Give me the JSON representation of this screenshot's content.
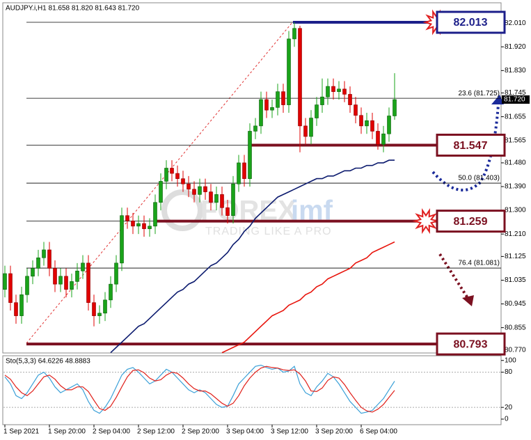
{
  "chart_data": [
    {
      "type": "candlestick",
      "title": "AUDJPY.i,H1  81.658 81.820 81.643 81.720",
      "categories": [
        "1 Sep 2021",
        null,
        null,
        null,
        null,
        null,
        null,
        null,
        "1 Sep 20:00",
        null,
        null,
        null,
        null,
        null,
        null,
        null,
        "2 Sep 04:00",
        null,
        null,
        null,
        null,
        null,
        null,
        null,
        "2 Sep 12:00",
        null,
        null,
        null,
        null,
        null,
        null,
        null,
        "2 Sep 20:00",
        null,
        null,
        null,
        null,
        null,
        null,
        null,
        "3 Sep 04:00",
        null,
        null,
        null,
        null,
        null,
        null,
        null,
        "3 Sep 12:00",
        null,
        null,
        null,
        null,
        null,
        null,
        null,
        "3 Sep 20:00",
        null,
        null,
        null,
        null,
        null,
        null,
        null,
        "6 Sep 04:00",
        null,
        null,
        null,
        null,
        null,
        null
      ],
      "open": [
        81.0,
        81.06,
        80.95,
        80.9,
        80.98,
        81.05,
        81.08,
        81.12,
        81.15,
        81.08,
        81.02,
        81.05,
        81.0,
        81.03,
        81.07,
        81.1,
        80.95,
        80.9,
        80.91,
        80.96,
        81.02,
        81.1,
        81.28,
        81.26,
        81.24,
        81.25,
        81.23,
        81.24,
        81.33,
        81.41,
        81.46,
        81.44,
        81.42,
        81.4,
        81.38,
        81.36,
        81.39,
        81.37,
        81.33,
        81.36,
        81.31,
        81.28,
        81.4,
        81.48,
        81.42,
        81.6,
        81.62,
        81.72,
        81.68,
        81.69,
        81.75,
        81.7,
        81.95,
        81.99,
        81.62,
        81.58,
        81.65,
        81.7,
        81.73,
        81.77,
        81.75,
        81.76,
        81.74,
        81.7,
        81.66,
        81.62,
        81.64,
        81.6,
        81.55,
        81.59,
        81.658
      ],
      "high": [
        81.09,
        81.09,
        80.98,
        81.01,
        81.08,
        81.11,
        81.15,
        81.18,
        81.18,
        81.11,
        81.08,
        81.08,
        81.06,
        81.1,
        81.13,
        81.13,
        80.98,
        80.94,
        80.99,
        81.05,
        81.13,
        81.31,
        81.31,
        81.29,
        81.28,
        81.28,
        81.27,
        81.36,
        81.44,
        81.49,
        81.49,
        81.47,
        81.45,
        81.43,
        81.41,
        81.42,
        81.42,
        81.4,
        81.39,
        81.39,
        81.34,
        81.43,
        81.51,
        81.51,
        81.63,
        81.65,
        81.75,
        81.75,
        81.72,
        81.78,
        81.78,
        81.98,
        82.013,
        82.0,
        81.65,
        81.68,
        81.73,
        81.8,
        81.8,
        81.8,
        81.79,
        81.79,
        81.77,
        81.73,
        81.69,
        81.67,
        81.67,
        81.63,
        81.62,
        81.69,
        81.82
      ],
      "low": [
        80.97,
        80.92,
        80.87,
        80.87,
        80.95,
        81.02,
        81.05,
        81.09,
        81.05,
        80.99,
        80.99,
        80.97,
        80.97,
        81.0,
        81.04,
        80.92,
        80.86,
        80.87,
        80.88,
        80.93,
        80.99,
        81.07,
        81.23,
        81.21,
        81.21,
        81.2,
        81.2,
        81.21,
        81.3,
        81.38,
        81.41,
        81.39,
        81.37,
        81.35,
        81.33,
        81.33,
        81.34,
        81.3,
        81.3,
        81.28,
        81.25,
        81.25,
        81.37,
        81.39,
        81.39,
        81.57,
        81.59,
        81.65,
        81.65,
        81.66,
        81.67,
        81.67,
        81.92,
        81.52,
        81.55,
        81.55,
        81.62,
        81.67,
        81.7,
        81.72,
        81.72,
        81.71,
        81.67,
        81.63,
        81.59,
        81.59,
        81.57,
        81.53,
        81.52,
        81.56,
        81.643
      ],
      "close": [
        81.06,
        80.95,
        80.9,
        80.98,
        81.05,
        81.08,
        81.12,
        81.15,
        81.08,
        81.02,
        81.05,
        81.0,
        81.03,
        81.07,
        81.1,
        80.95,
        80.9,
        80.91,
        80.96,
        81.02,
        81.1,
        81.28,
        81.26,
        81.24,
        81.25,
        81.23,
        81.24,
        81.33,
        81.41,
        81.46,
        81.44,
        81.42,
        81.4,
        81.38,
        81.36,
        81.39,
        81.37,
        81.33,
        81.36,
        81.31,
        81.28,
        81.4,
        81.48,
        81.42,
        81.6,
        81.62,
        81.72,
        81.68,
        81.69,
        81.75,
        81.7,
        81.95,
        81.99,
        81.62,
        81.58,
        81.65,
        81.7,
        81.73,
        81.77,
        81.75,
        81.76,
        81.74,
        81.7,
        81.66,
        81.62,
        81.64,
        81.6,
        81.55,
        81.59,
        81.658,
        81.72
      ],
      "up_color": "#1aa31a",
      "down_color": "#e00000",
      "lines": [
        {
          "color": "#0b1a6e",
          "values": [
            null,
            null,
            null,
            null,
            null,
            null,
            null,
            null,
            null,
            null,
            null,
            null,
            null,
            null,
            null,
            null,
            null,
            null,
            null,
            80.76,
            80.78,
            80.8,
            80.82,
            80.84,
            80.86,
            80.87,
            80.89,
            80.91,
            80.93,
            80.95,
            80.97,
            80.99,
            81.0,
            81.02,
            81.03,
            81.05,
            81.07,
            81.09,
            81.1,
            81.12,
            81.14,
            81.17,
            81.19,
            81.22,
            81.24,
            81.27,
            81.29,
            81.31,
            81.33,
            81.35,
            81.36,
            81.37,
            81.38,
            81.39,
            81.4,
            81.41,
            81.42,
            81.42,
            81.43,
            81.43,
            81.44,
            81.45,
            81.45,
            81.46,
            81.46,
            81.47,
            81.47,
            81.48,
            81.48,
            81.49,
            81.49
          ]
        },
        {
          "color": "#e8140c",
          "values": [
            null,
            null,
            null,
            null,
            null,
            null,
            null,
            null,
            null,
            null,
            null,
            null,
            null,
            null,
            null,
            null,
            null,
            null,
            null,
            null,
            null,
            null,
            null,
            null,
            null,
            null,
            null,
            null,
            null,
            null,
            null,
            null,
            null,
            null,
            null,
            null,
            null,
            null,
            null,
            80.76,
            80.77,
            80.78,
            80.79,
            80.8,
            80.82,
            80.84,
            80.86,
            80.88,
            80.9,
            80.91,
            80.92,
            80.94,
            80.95,
            80.96,
            80.98,
            80.99,
            81.01,
            81.02,
            81.04,
            81.05,
            81.06,
            81.07,
            81.08,
            81.1,
            81.11,
            81.12,
            81.14,
            81.15,
            81.16,
            81.17,
            81.18
          ]
        }
      ],
      "ylim": [
        80.759,
        82.087
      ],
      "yticks": [
        {
          "value": 82.01,
          "label": "82.010"
        },
        {
          "value": 81.92,
          "label": "81.920"
        },
        {
          "value": 81.83,
          "label": "81.830"
        },
        81.745,
        81.655,
        81.565,
        {
          "value": 81.48,
          "label": "81.480"
        },
        {
          "value": 81.39,
          "label": "81.390"
        },
        {
          "value": 81.3,
          "label": "81.300"
        },
        {
          "value": 81.21,
          "label": "81.210"
        },
        81.125,
        81.035,
        80.945,
        80.855,
        {
          "value": 80.77,
          "label": "80.770"
        }
      ],
      "fib_levels": [
        {
          "label": "23.6 (81.725)",
          "value": 81.725
        },
        {
          "label": "50.0 (81.403)",
          "value": 81.403
        },
        {
          "label": "76.4 (81.081)",
          "value": 81.081
        }
      ],
      "levels": [
        {
          "value": 82.013,
          "color": "#1c1f8a"
        },
        {
          "value": 81.547,
          "color": "#7b1020"
        },
        {
          "value": 81.259,
          "color": "#7b1020"
        },
        {
          "value": 80.793,
          "color": "#7b1020"
        }
      ],
      "last_price": {
        "value": 81.72,
        "label": "81.720"
      },
      "watermark": {
        "brand": [
          "FOREX",
          "imf"
        ],
        "tagline": "TRADING LIKE A PRO"
      }
    },
    {
      "type": "line",
      "title": "Sto(5,3,3) 64.6226 48.8883",
      "series": [
        {
          "color": "#3aa0d8",
          "values": [
            72,
            60,
            40,
            35,
            45,
            60,
            75,
            80,
            70,
            55,
            45,
            50,
            55,
            60,
            50,
            30,
            15,
            10,
            20,
            35,
            55,
            75,
            85,
            88,
            80,
            70,
            60,
            65,
            75,
            85,
            80,
            70,
            60,
            50,
            45,
            50,
            45,
            35,
            25,
            20,
            22,
            40,
            60,
            70,
            80,
            90,
            92,
            88,
            85,
            87,
            80,
            82,
            90,
            60,
            45,
            40,
            55,
            65,
            78,
            72,
            60,
            45,
            30,
            20,
            10,
            12,
            15,
            25,
            35,
            50,
            64.6226
          ]
        },
        {
          "color": "#e0201a",
          "values": [
            75,
            68,
            55,
            45,
            40,
            48,
            60,
            72,
            75,
            68,
            57,
            50,
            50,
            55,
            55,
            47,
            32,
            18,
            15,
            22,
            37,
            55,
            72,
            83,
            84,
            79,
            70,
            65,
            67,
            75,
            80,
            78,
            70,
            60,
            52,
            48,
            48,
            43,
            35,
            27,
            22,
            27,
            40,
            57,
            70,
            80,
            87,
            90,
            88,
            87,
            84,
            83,
            84,
            77,
            65,
            48,
            47,
            53,
            66,
            72,
            70,
            59,
            45,
            32,
            20,
            14,
            12,
            17,
            25,
            37,
            48.8883
          ]
        }
      ],
      "ylim": [
        -9.5,
        108
      ],
      "yticks": [
        100,
        80,
        20,
        0
      ],
      "levels": [
        80,
        20
      ]
    }
  ]
}
